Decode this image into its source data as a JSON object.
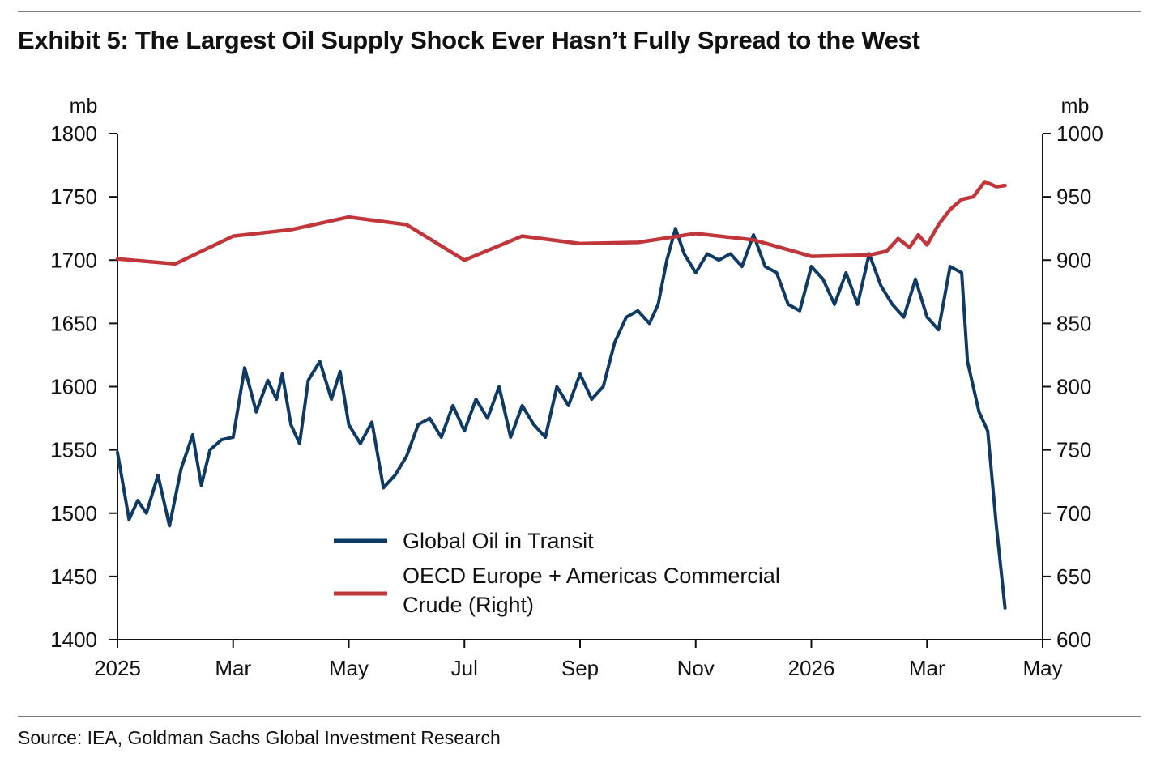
{
  "header": {
    "title": "Exhibit 5: The Largest Oil Supply Shock Ever Hasn’t Fully Spread to the West"
  },
  "footer": {
    "source": "Source: IEA, Goldman Sachs Global Investment Research"
  },
  "chart_data": {
    "type": "line",
    "x_tick_labels": [
      "2025",
      "Mar",
      "May",
      "Jul",
      "Sep",
      "Nov",
      "2026",
      "Mar",
      "May"
    ],
    "xlim": [
      0,
      16
    ],
    "left_axis": {
      "unit": "mb",
      "ylim": [
        1400,
        1800
      ],
      "ticks": [
        1400,
        1450,
        1500,
        1550,
        1600,
        1650,
        1700,
        1750,
        1800
      ]
    },
    "right_axis": {
      "unit": "mb",
      "ylim": [
        600,
        1000
      ],
      "ticks": [
        600,
        650,
        700,
        750,
        800,
        850,
        900,
        950,
        1000
      ]
    },
    "legend": {
      "placement": "bottom-center"
    },
    "series": [
      {
        "name": "Global Oil in Transit",
        "axis": "left",
        "color": "#0f3a63",
        "x": [
          0,
          0.2,
          0.35,
          0.5,
          0.7,
          0.9,
          1.1,
          1.3,
          1.45,
          1.6,
          1.8,
          2.0,
          2.2,
          2.4,
          2.6,
          2.75,
          2.85,
          3.0,
          3.15,
          3.3,
          3.5,
          3.7,
          3.85,
          4.0,
          4.2,
          4.4,
          4.6,
          4.8,
          5.0,
          5.2,
          5.4,
          5.6,
          5.8,
          6.0,
          6.2,
          6.4,
          6.6,
          6.8,
          7.0,
          7.2,
          7.4,
          7.6,
          7.8,
          8.0,
          8.2,
          8.4,
          8.6,
          8.8,
          9.0,
          9.2,
          9.35,
          9.5,
          9.65,
          9.8,
          10.0,
          10.2,
          10.4,
          10.6,
          10.8,
          11.0,
          11.2,
          11.4,
          11.6,
          11.8,
          12.0,
          12.2,
          12.4,
          12.6,
          12.8,
          13.0,
          13.2,
          13.4,
          13.6,
          13.8,
          14.0,
          14.2,
          14.4,
          14.6,
          14.7,
          14.9,
          15.05,
          15.2,
          15.35
        ],
        "values": [
          1548,
          1495,
          1510,
          1500,
          1530,
          1490,
          1535,
          1562,
          1522,
          1550,
          1558,
          1560,
          1615,
          1580,
          1605,
          1590,
          1610,
          1570,
          1555,
          1605,
          1620,
          1590,
          1612,
          1570,
          1555,
          1572,
          1520,
          1530,
          1545,
          1570,
          1575,
          1560,
          1585,
          1565,
          1590,
          1575,
          1600,
          1560,
          1585,
          1570,
          1560,
          1600,
          1585,
          1610,
          1590,
          1600,
          1635,
          1655,
          1660,
          1650,
          1665,
          1700,
          1725,
          1705,
          1690,
          1705,
          1700,
          1705,
          1695,
          1720,
          1695,
          1690,
          1665,
          1660,
          1695,
          1685,
          1665,
          1690,
          1665,
          1705,
          1680,
          1665,
          1655,
          1685,
          1655,
          1645,
          1695,
          1690,
          1620,
          1580,
          1565,
          1490,
          1425
        ]
      },
      {
        "name": "OECD Europe + Americas Commercial Crude (Right)",
        "axis": "right",
        "color": "#c0363a",
        "x": [
          0,
          1,
          2,
          3,
          4,
          5,
          6,
          7,
          8,
          9,
          10,
          11,
          12,
          13,
          13.3,
          13.5,
          13.7,
          13.85,
          14.0,
          14.2,
          14.4,
          14.6,
          14.8,
          15.0,
          15.2,
          15.35
        ],
        "values": [
          901,
          897,
          919,
          924,
          934,
          928,
          900,
          919,
          913,
          914,
          921,
          916,
          903,
          904,
          907,
          917,
          910,
          920,
          912,
          928,
          940,
          948,
          950,
          962,
          958,
          959
        ]
      }
    ]
  }
}
